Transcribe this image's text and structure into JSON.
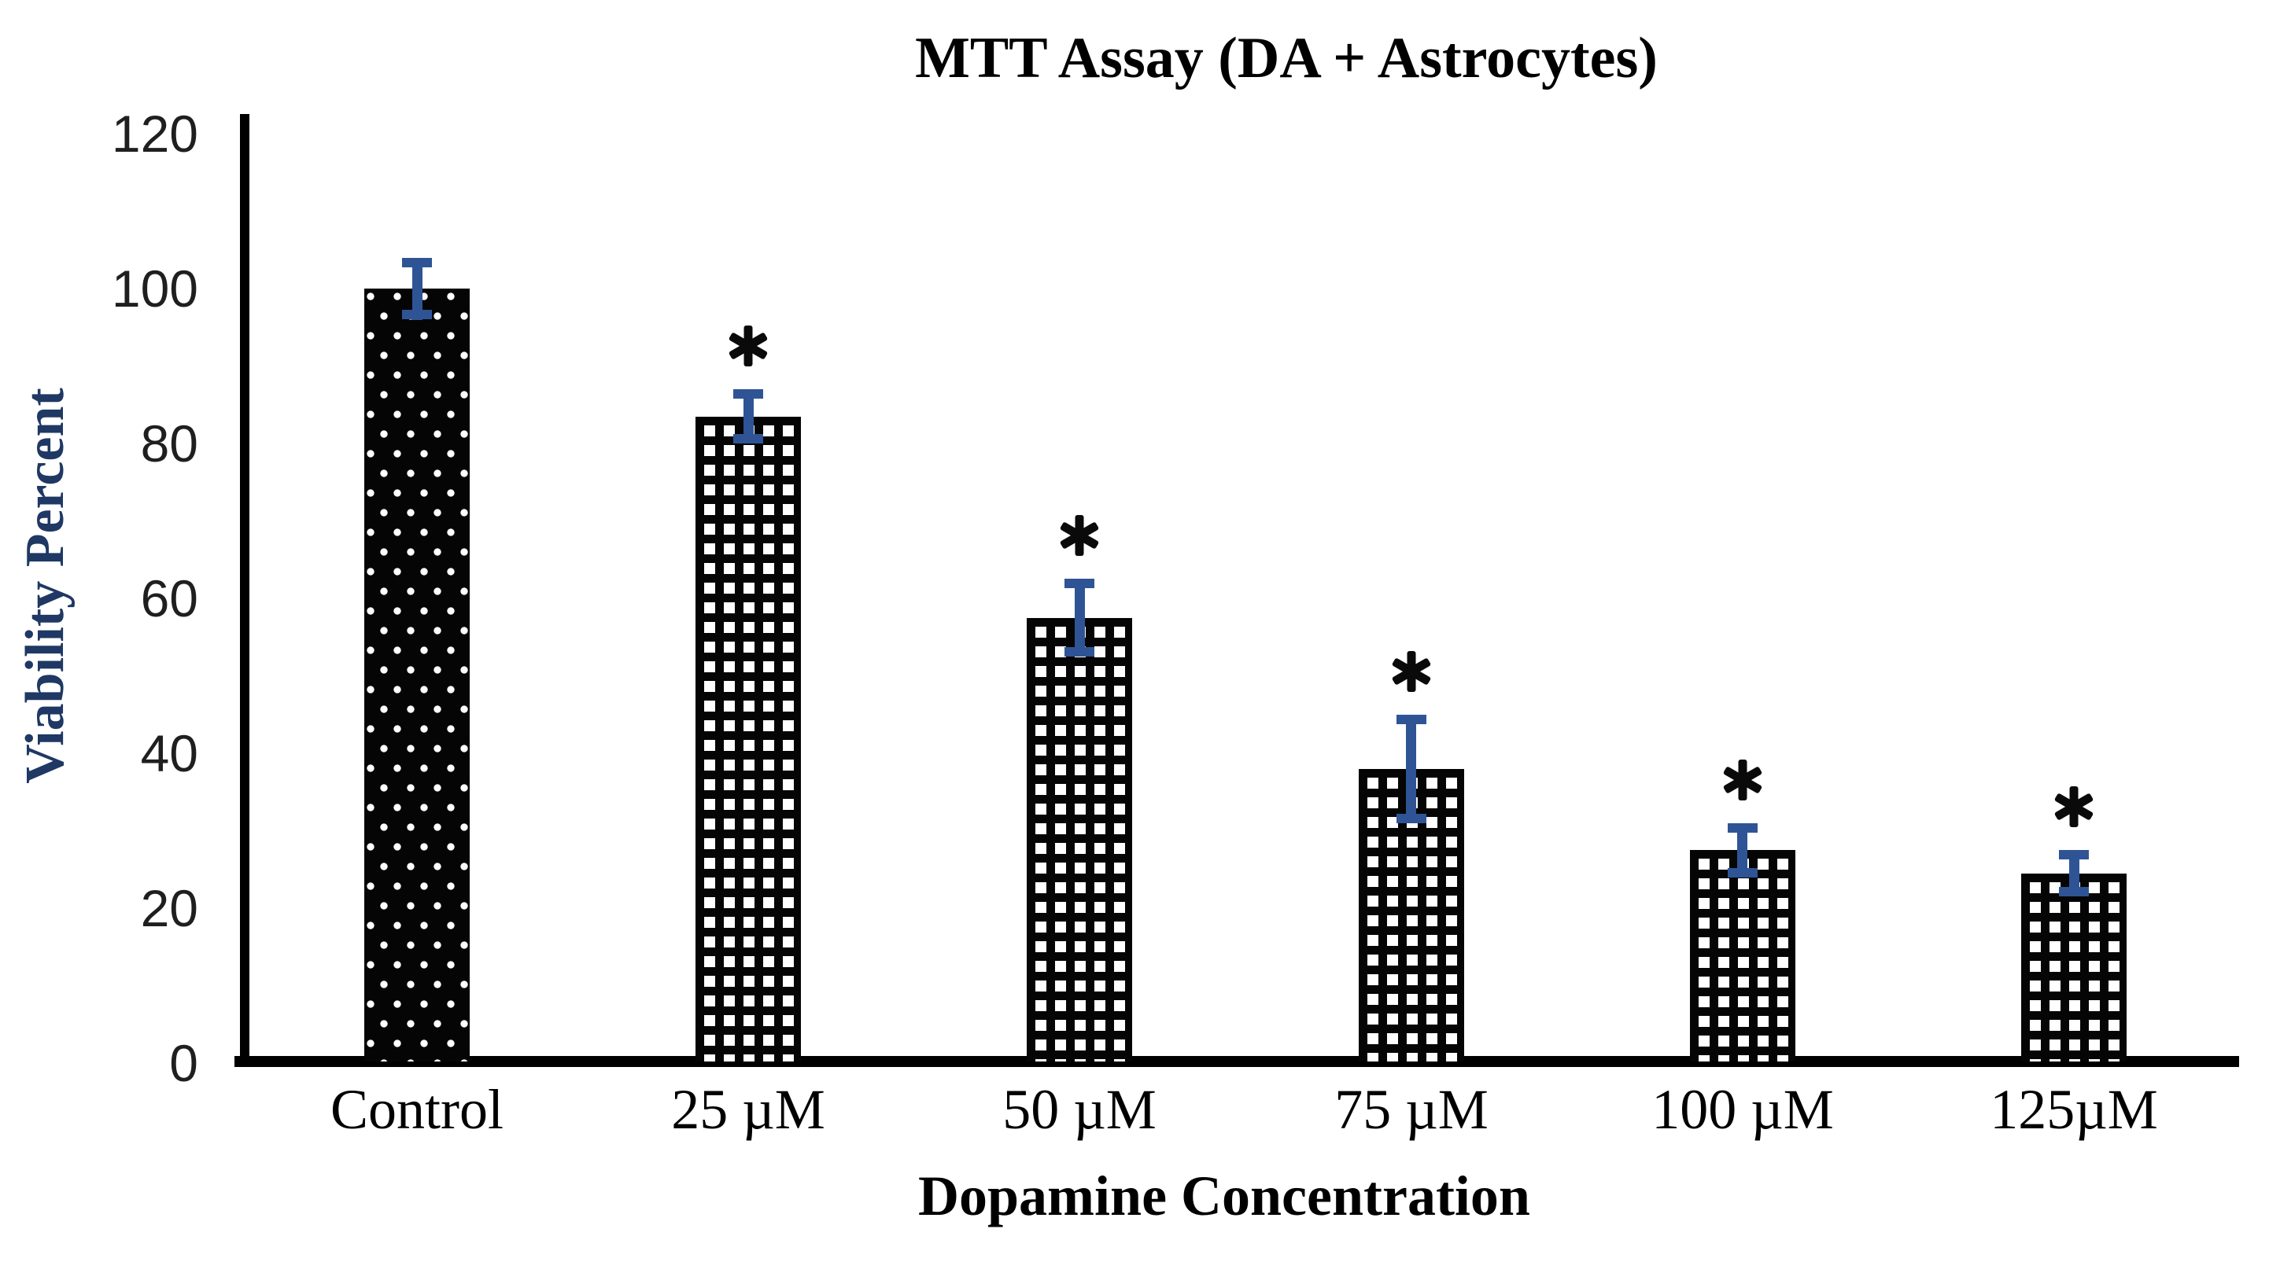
{
  "figure": {
    "background": "#ffffff"
  },
  "chart_data": {
    "type": "bar",
    "title": "MTT Assay (DA + Astrocytes)",
    "xlabel": "Dopamine Concentration",
    "ylabel": "Viability Percent",
    "categories": [
      "Control",
      "25 µM",
      "50 µM",
      "75 µM",
      "100 µM",
      "125µM"
    ],
    "series": [
      {
        "name": "Viability Percent",
        "values": [
          100,
          83.5,
          57.5,
          38,
          27.5,
          24.5
        ],
        "errors": [
          4,
          3.5,
          5,
          7,
          3.5,
          3
        ],
        "significance": [
          "",
          "*",
          "*",
          "*",
          "*",
          "*"
        ]
      }
    ],
    "yticks": [
      0,
      20,
      40,
      60,
      80,
      100,
      120
    ],
    "ylim": [
      0,
      120
    ],
    "grid": false,
    "legend": "none",
    "bar_patterns": [
      "white-dots-on-black",
      "black-white-trellis",
      "black-white-trellis",
      "black-white-trellis",
      "black-white-trellis",
      "black-white-trellis"
    ],
    "colors": {
      "bar": "#000000",
      "error_bar": "#2F5496",
      "y_axis_title": "#1F3864",
      "text": "#000000",
      "axis_line": "#000000"
    }
  }
}
